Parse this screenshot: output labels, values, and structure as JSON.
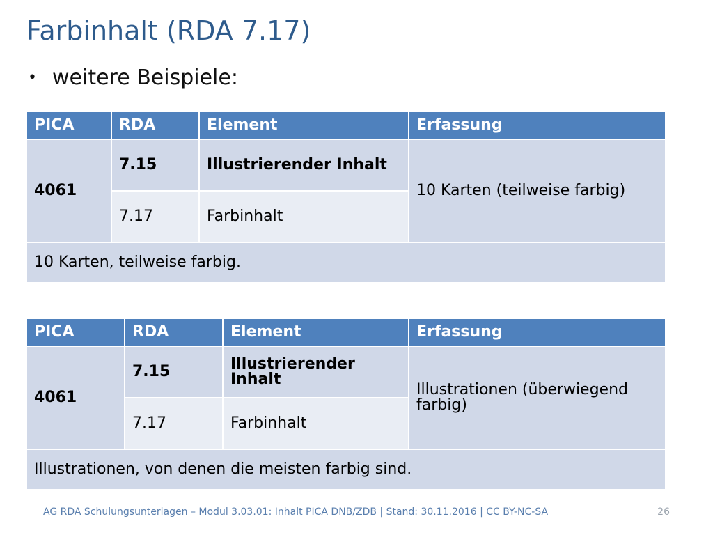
{
  "title": "Farbinhalt (RDA 7.17)",
  "bullet": "weitere Beispiele:",
  "tables": [
    {
      "headers": [
        "PICA",
        "RDA",
        "Element",
        "Erfassung"
      ],
      "pica": "4061",
      "rows": [
        {
          "rda": "7.15",
          "element": "Illustrierender Inhalt"
        },
        {
          "rda": "7.17",
          "element": "Farbinhalt"
        }
      ],
      "erfassung": "10 Karten (teilweise farbig)",
      "result": "10 Karten, teilweise farbig."
    },
    {
      "headers": [
        "PICA",
        "RDA",
        "Element",
        "Erfassung"
      ],
      "pica": "4061",
      "rows": [
        {
          "rda": "7.15",
          "element": "Illustrierender Inhalt"
        },
        {
          "rda": "7.17",
          "element": "Farbinhalt"
        }
      ],
      "erfassung": "Illustrationen (überwiegend farbig)",
      "result": "Illustrationen, von denen die meisten farbig sind."
    }
  ],
  "footer": "AG RDA Schulungsunterlagen – Modul 3.03.01: Inhalt PICA DNB/ZDB | Stand: 30.11.2016 | CC BY-NC-SA",
  "page_number": "26",
  "colors": {
    "title": "#2e5b8c",
    "header_bg": "#4f81bd",
    "row_dark": "#d0d8e8",
    "row_light": "#e9edf4"
  }
}
